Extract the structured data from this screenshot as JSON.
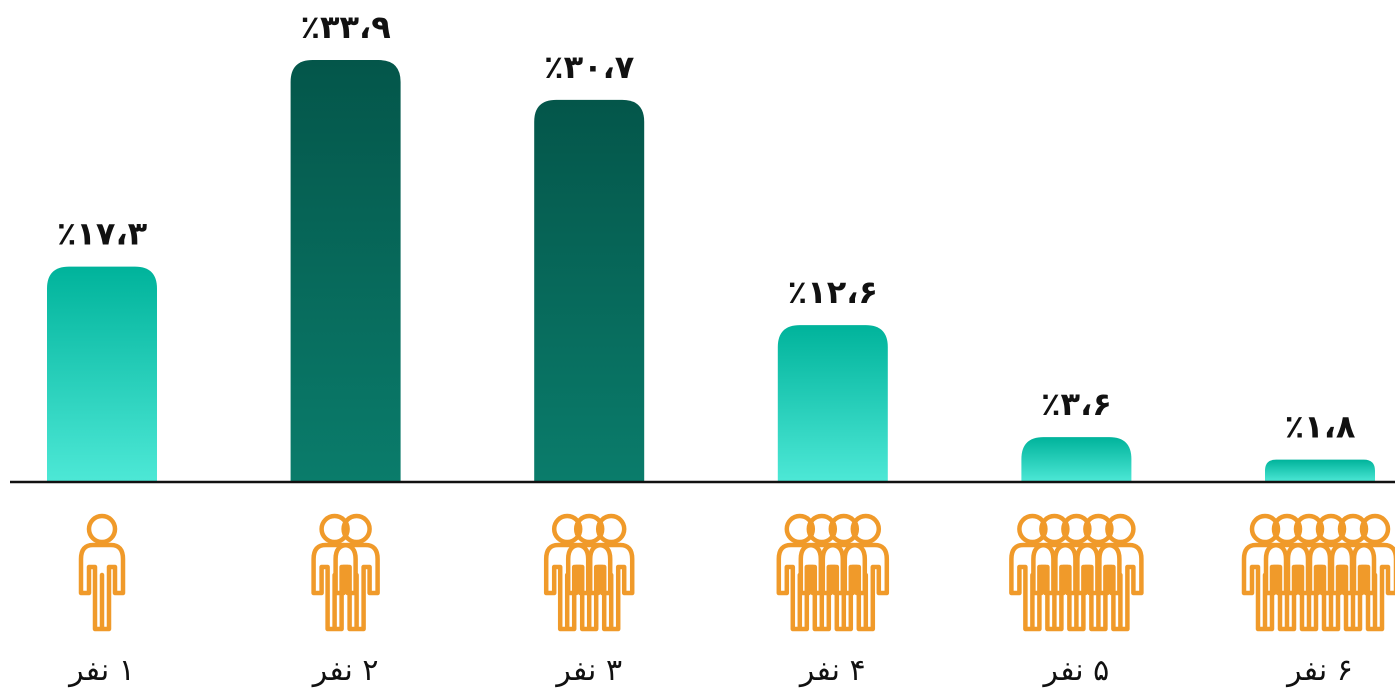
{
  "chart_data": {
    "type": "bar",
    "categories": [
      "۱ نفر",
      "۲ نفر",
      "۳ نفر",
      "۴ نفر",
      "۵ نفر",
      "۶ نفر"
    ],
    "people_icons": [
      1,
      2,
      3,
      4,
      5,
      6
    ],
    "values": [
      17.3,
      33.9,
      30.7,
      12.6,
      3.6,
      1.8
    ],
    "value_labels": [
      "٪۱۷،۳",
      "٪۳۳،۹",
      "٪۳۰،۷",
      "٪۱۲،۶",
      "٪۳،۶",
      "٪۱،۸"
    ],
    "emphasized": [
      false,
      true,
      true,
      false,
      false,
      false
    ],
    "ylim": [
      0,
      35
    ],
    "grid": false,
    "legend": "none",
    "colors": {
      "bar_light_top": "#00b39b",
      "bar_light_bottom": "#4de8d6",
      "bar_dark_top": "#04564a",
      "bar_dark_bottom": "#0a7c6b",
      "icon": "#f09a2a",
      "axis": "#111111"
    }
  }
}
